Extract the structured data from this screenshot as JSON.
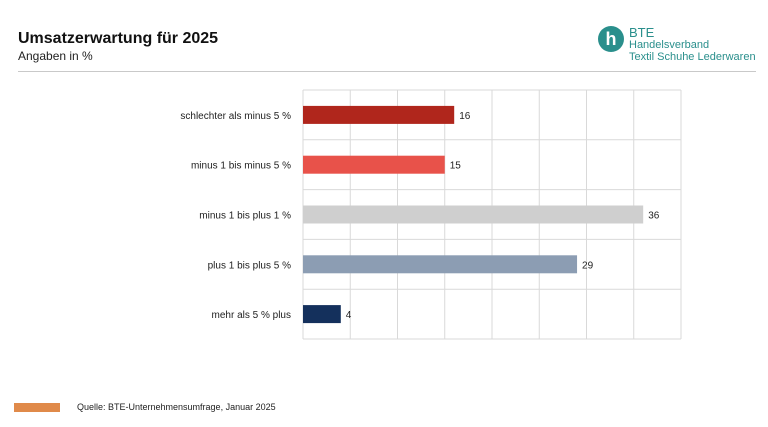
{
  "header": {
    "title": "Umsatzerwartung für 2025",
    "subtitle": "Angaben in %"
  },
  "logo": {
    "letter": "h",
    "name": "BTE",
    "line1": "Handelsverband",
    "line2": "Textil  Schuhe  Lederwaren",
    "color": "#2a8f8c"
  },
  "footer": {
    "source": "Quelle: BTE-Unternehmensumfrage, Januar 2025",
    "swatch_color": "#e08a4a"
  },
  "chart_data": {
    "type": "bar",
    "orientation": "horizontal",
    "title": "",
    "xlabel": "",
    "ylabel": "",
    "categories": [
      "schlechter als minus 5 %",
      "minus 1 bis minus 5 %",
      "minus 1 bis plus 1 %",
      "plus 1 bis plus 5 %",
      "mehr als 5 % plus"
    ],
    "values": [
      16,
      15,
      36,
      29,
      4
    ],
    "colors": [
      "#b0261c",
      "#e8524a",
      "#cfcfcf",
      "#8c9db3",
      "#14305c"
    ],
    "xlim": [
      0,
      40
    ],
    "grid": true,
    "legend": "none"
  }
}
